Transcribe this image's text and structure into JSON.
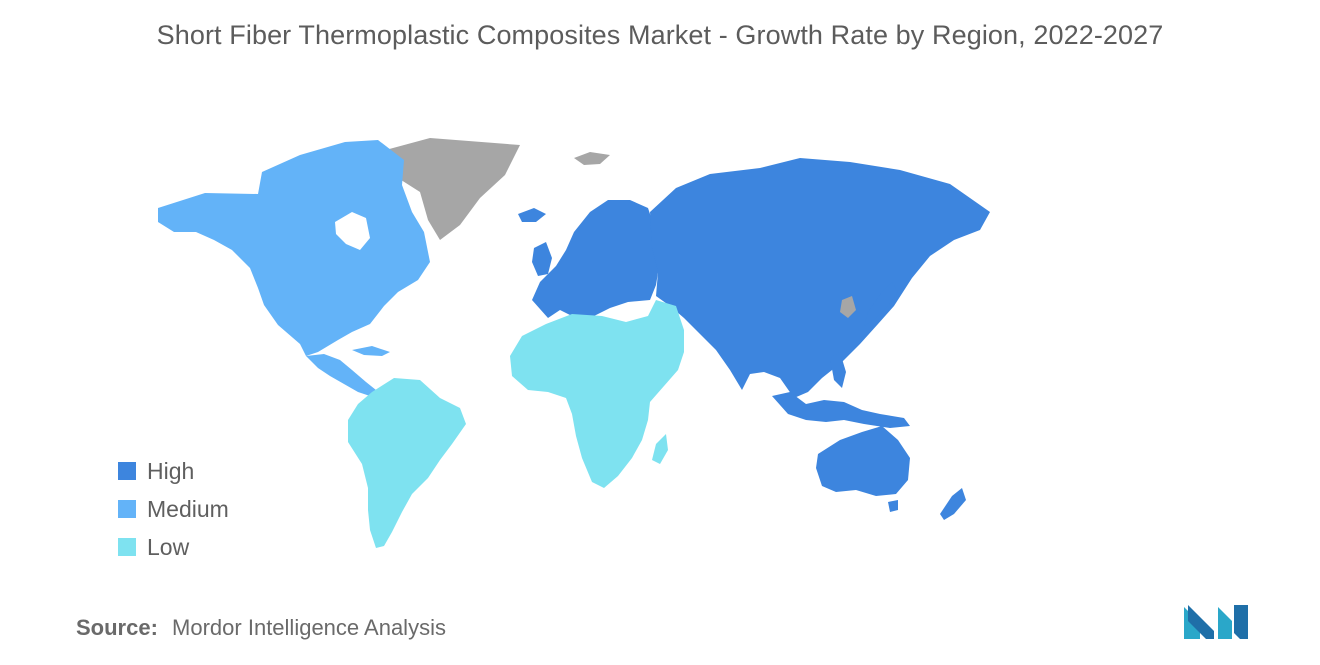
{
  "title": "Short Fiber Thermoplastic Composites Market - Growth Rate by Region, 2022-2027",
  "legend": [
    {
      "label": "High",
      "color": "#3d85de"
    },
    {
      "label": "Medium",
      "color": "#63b3f8"
    },
    {
      "label": "Low",
      "color": "#7ee2f0"
    }
  ],
  "no_data_color": "#a6a6a6",
  "regions": [
    {
      "region": "North America",
      "level": "Medium"
    },
    {
      "region": "Europe",
      "level": "High"
    },
    {
      "region": "Asia-Pacific",
      "level": "High"
    },
    {
      "region": "South America",
      "level": "Low"
    },
    {
      "region": "Middle East and Africa",
      "level": "Low"
    }
  ],
  "source": {
    "label": "Source:",
    "text": "Mordor Intelligence Analysis"
  },
  "logo_icon": "mordor-intelligence-logo-icon"
}
